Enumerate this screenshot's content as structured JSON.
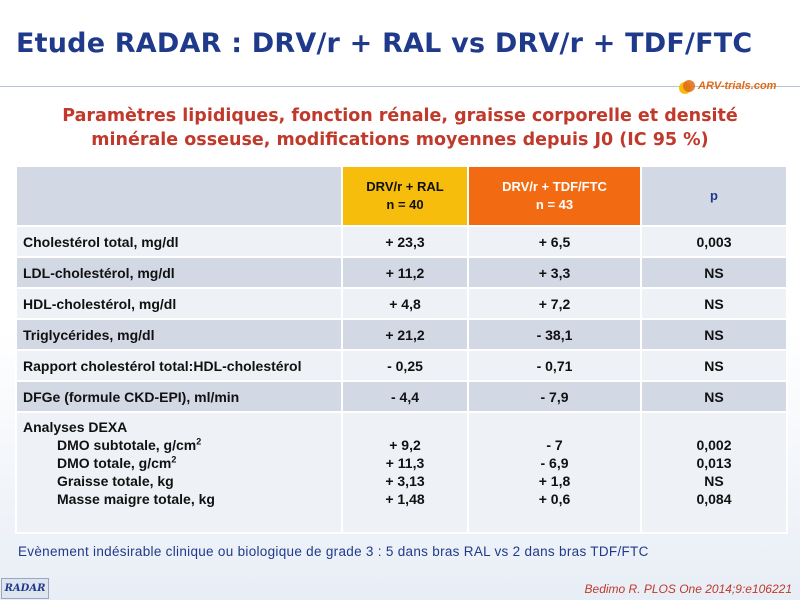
{
  "title": "Etude RADAR : DRV/r + RAL vs DRV/r + TDF/FTC",
  "logo": {
    "text": "ARV-trials.com",
    "colors": {
      "orange": "#e06a15",
      "yellow": "#f6bd0d"
    }
  },
  "subtitle": {
    "line1": "Paramètres lipidiques, fonction rénale, graisse corporelle et densité",
    "line2": "minérale osseuse, modifications moyennes depuis J0 (IC 95 %)"
  },
  "table": {
    "headers": {
      "ral_line1": "DRV/r + RAL",
      "ral_line2": "n = 40",
      "tdf_line1": "DRV/r + TDF/FTC",
      "tdf_line2": "n = 43",
      "p": "p"
    },
    "rows": [
      {
        "label": "Cholestérol total, mg/dl",
        "ral": "+ 23,3",
        "tdf": "+ 6,5",
        "p": "0,003"
      },
      {
        "label": "LDL-cholestérol, mg/dl",
        "ral": "+ 11,2",
        "tdf": "+ 3,3",
        "p": "NS"
      },
      {
        "label": "HDL-cholestérol, mg/dl",
        "ral": "+ 4,8",
        "tdf": "+ 7,2",
        "p": "NS"
      },
      {
        "label": "Triglycérides, mg/dl",
        "ral": "+ 21,2",
        "tdf": "- 38,1",
        "p": "NS"
      },
      {
        "label": "Rapport cholestérol total:HDL-cholestérol",
        "ral": "- 0,25",
        "tdf": "- 0,71",
        "p": "NS"
      },
      {
        "label": "DFGe (formule CKD-EPI), ml/min",
        "ral": "- 4,4",
        "tdf": "- 7,9",
        "p": "NS"
      }
    ],
    "dexa": {
      "heading": "Analyses DEXA",
      "items": [
        {
          "label": "DMO subtotale, g/cm",
          "sup": "2",
          "ral": "+ 9,2",
          "tdf": "- 7",
          "p": "0,002"
        },
        {
          "label": "DMO totale, g/cm",
          "sup": "2",
          "ral": "+ 11,3",
          "tdf": "- 6,9",
          "p": "0,013"
        },
        {
          "label": "Graisse totale, kg",
          "sup": "",
          "ral": "+ 3,13",
          "tdf": "+ 1,8",
          "p": "NS"
        },
        {
          "label": "Masse maigre totale, kg",
          "sup": "",
          "ral": "+ 1,48",
          "tdf": "+ 0,6",
          "p": "0,084"
        }
      ]
    }
  },
  "footnote": "Evènement indésirable clinique ou biologique de grade 3 : 5 dans bras RAL vs 2 dans bras TDF/FTC",
  "badge": "RADAR",
  "citation": "Bedimo R. PLOS One 2014;9:e106221",
  "colors": {
    "title": "#1f3a8a",
    "subtitle": "#c0392b",
    "ral_header": "#f6bd0d",
    "tdf_header": "#f26a12",
    "row_light": "#eef1f6",
    "row_dark": "#d2d8e4"
  }
}
